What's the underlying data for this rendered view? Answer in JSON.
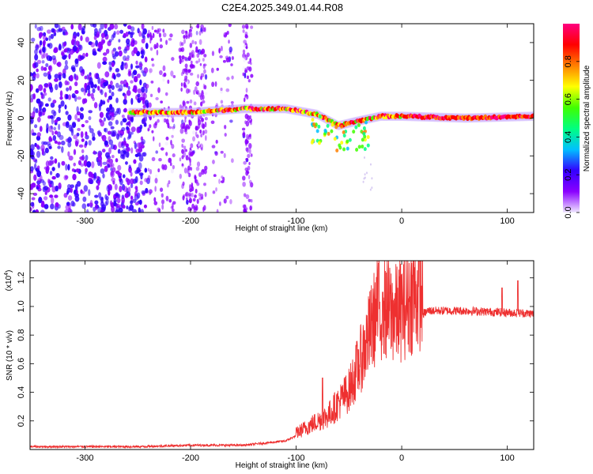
{
  "title": "C2E4.2025.349.01.44.R08",
  "chart_data": [
    {
      "type": "heatmap",
      "name": "spectrogram",
      "xlabel": "Height of straight line (km)",
      "ylabel": "Frequency (Hz)",
      "xlim": [
        -352,
        125
      ],
      "ylim": [
        -50,
        50
      ],
      "xticks": [
        -300,
        -200,
        -100,
        0,
        100
      ],
      "xtick_labels": [
        "-300",
        "-200",
        "-100",
        "0",
        "100"
      ],
      "yticks": [
        -40,
        -20,
        0,
        20,
        40
      ],
      "ytick_labels": [
        "-40",
        "-20",
        "0",
        "20",
        "40"
      ],
      "colorbar": {
        "label": "Normalized spectral amplitude",
        "range": [
          0,
          1
        ],
        "ticks": [
          0.0,
          0.2,
          0.4,
          0.6,
          0.8
        ],
        "tick_labels": [
          "0.0",
          "0.2",
          "0.4",
          "0.6",
          "0.8"
        ],
        "colors": [
          "#f0e8ff",
          "#8a00ff",
          "#3300ff",
          "#00c0ff",
          "#00ff80",
          "#40ff00",
          "#ffff00",
          "#ff8000",
          "#ff0000",
          "#ff0080"
        ]
      },
      "noise_region_km": [
        -352,
        -240
      ],
      "signal_track": [
        {
          "x": -258,
          "freq": 3
        },
        {
          "x": -200,
          "freq": 3
        },
        {
          "x": -150,
          "freq": 5
        },
        {
          "x": -110,
          "freq": 5
        },
        {
          "x": -80,
          "freq": 2
        },
        {
          "x": -60,
          "freq": -4
        },
        {
          "x": -45,
          "freq": -2
        },
        {
          "x": -20,
          "freq": 1
        },
        {
          "x": 0,
          "freq": 1
        },
        {
          "x": 60,
          "freq": 0
        },
        {
          "x": 125,
          "freq": 1
        }
      ]
    },
    {
      "type": "line",
      "name": "snr",
      "xlabel": "Height of straight line (km)",
      "ylabel": "SNR (10 * v/v)",
      "yscale_label": "(x10",
      "yscale_exp": "4",
      "xlim": [
        -352,
        125
      ],
      "ylim": [
        0,
        1.32
      ],
      "xticks": [
        -300,
        -200,
        -100,
        0,
        100
      ],
      "xtick_labels": [
        "-300",
        "-200",
        "-100",
        "0",
        "100"
      ],
      "yticks": [
        0.2,
        0.4,
        0.6,
        0.8,
        1.0,
        1.2
      ],
      "ytick_labels": [
        "0.2",
        "0.4",
        "0.6",
        "0.8",
        "1.0",
        "1.2"
      ],
      "color": "#ee3030",
      "envelope": [
        {
          "x": -352,
          "y": 0.02
        },
        {
          "x": -250,
          "y": 0.02
        },
        {
          "x": -200,
          "y": 0.03
        },
        {
          "x": -150,
          "y": 0.03
        },
        {
          "x": -110,
          "y": 0.06
        },
        {
          "x": -85,
          "y": 0.15
        },
        {
          "x": -70,
          "y": 0.2
        },
        {
          "x": -50,
          "y": 0.35
        },
        {
          "x": -35,
          "y": 0.6
        },
        {
          "x": -22,
          "y": 0.85
        },
        {
          "x": -5,
          "y": 0.8
        },
        {
          "x": 10,
          "y": 0.9
        },
        {
          "x": 25,
          "y": 0.97
        },
        {
          "x": 60,
          "y": 0.97
        },
        {
          "x": 90,
          "y": 0.96
        },
        {
          "x": 125,
          "y": 0.95
        }
      ],
      "peaks": [
        {
          "x": -75,
          "y": 0.5
        },
        {
          "x": -22,
          "y": 1.3
        },
        {
          "x": -18,
          "y": 1.1
        },
        {
          "x": 95,
          "y": 1.13
        },
        {
          "x": 110,
          "y": 1.18
        }
      ]
    }
  ]
}
